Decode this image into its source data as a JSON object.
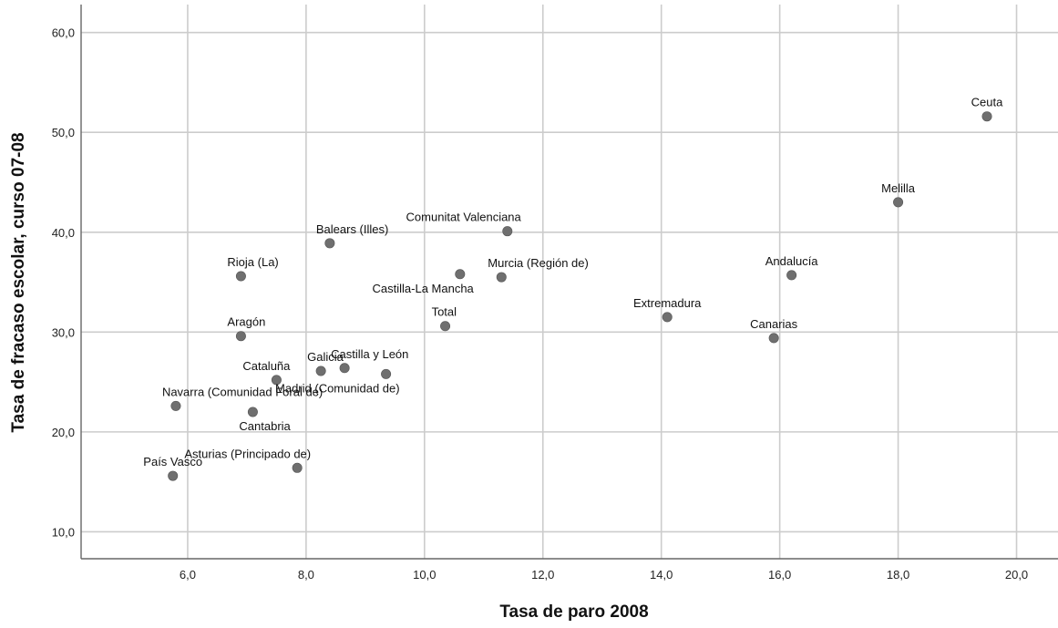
{
  "chart_data": {
    "type": "scatter",
    "xlabel": "Tasa de paro 2008",
    "ylabel": "Tasa de fracaso escolar, curso 07-08",
    "xlim": [
      4.2,
      20.7
    ],
    "ylim": [
      7.3,
      62.8
    ],
    "xticks": [
      6,
      8,
      10,
      12,
      14,
      16,
      18,
      20
    ],
    "yticks": [
      10,
      20,
      30,
      40,
      50,
      60
    ],
    "xtick_labels": [
      "6,0",
      "8,0",
      "10,0",
      "12,0",
      "14,0",
      "16,0",
      "18,0",
      "20,0"
    ],
    "ytick_labels": [
      "10,0",
      "20,0",
      "30,0",
      "40,0",
      "50,0",
      "60,0"
    ],
    "grid": true,
    "marker_color": "#6f6f6f",
    "points": [
      {
        "label": "Ceuta",
        "x": 19.5,
        "y": 51.6,
        "anchor": "middle",
        "pos": "above"
      },
      {
        "label": "Melilla",
        "x": 18.0,
        "y": 43.0,
        "anchor": "middle",
        "pos": "above"
      },
      {
        "label": "Comunitat Valenciana",
        "x": 11.4,
        "y": 40.1,
        "anchor": "end",
        "pos": "above"
      },
      {
        "label": "Balears (Illes)",
        "x": 8.4,
        "y": 38.9,
        "anchor": "start",
        "pos": "above"
      },
      {
        "label": "Rioja (La)",
        "x": 6.9,
        "y": 35.6,
        "anchor": "start",
        "pos": "above"
      },
      {
        "label": "Castilla-La Mancha",
        "x": 10.6,
        "y": 35.8,
        "anchor": "end",
        "pos": "below"
      },
      {
        "label": "Murcia (Región de)",
        "x": 11.3,
        "y": 35.5,
        "anchor": "start",
        "pos": "above"
      },
      {
        "label": "Andalucía",
        "x": 16.2,
        "y": 35.7,
        "anchor": "middle",
        "pos": "above"
      },
      {
        "label": "Extremadura",
        "x": 14.1,
        "y": 31.5,
        "anchor": "middle",
        "pos": "above"
      },
      {
        "label": "Total",
        "x": 10.35,
        "y": 30.6,
        "anchor": "start",
        "pos": "above"
      },
      {
        "label": "Aragón",
        "x": 6.9,
        "y": 29.6,
        "anchor": "start",
        "pos": "above"
      },
      {
        "label": "Canarias",
        "x": 15.9,
        "y": 29.4,
        "anchor": "middle",
        "pos": "above"
      },
      {
        "label": "Galicia",
        "x": 8.25,
        "y": 26.1,
        "anchor": "start",
        "pos": "above"
      },
      {
        "label": "Castilla y León",
        "x": 8.65,
        "y": 26.4,
        "anchor": "start",
        "pos": "above"
      },
      {
        "label": "Madrid (Comunidad de)",
        "x": 9.35,
        "y": 25.8,
        "anchor": "end",
        "pos": "below"
      },
      {
        "label": "Cataluña",
        "x": 7.5,
        "y": 25.2,
        "anchor": "end",
        "pos": "above"
      },
      {
        "label": "Navarra (Comunidad Foral de)",
        "x": 5.8,
        "y": 22.6,
        "anchor": "start",
        "pos": "above"
      },
      {
        "label": "Cantabria",
        "x": 7.1,
        "y": 22.0,
        "anchor": "start",
        "pos": "below"
      },
      {
        "label": "Asturias (Principado de)",
        "x": 7.85,
        "y": 16.4,
        "anchor": "end",
        "pos": "above"
      },
      {
        "label": "País Vasco",
        "x": 5.75,
        "y": 15.6,
        "anchor": "middle",
        "pos": "above"
      }
    ]
  }
}
